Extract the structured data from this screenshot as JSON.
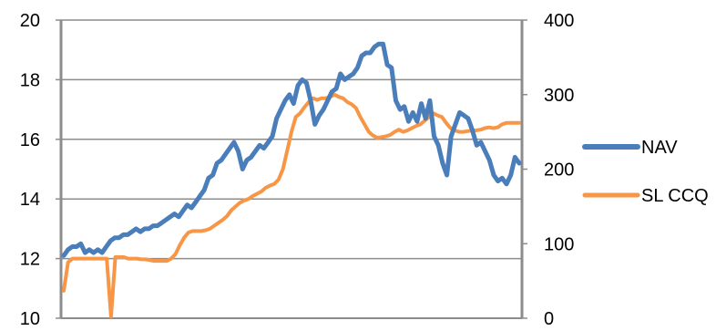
{
  "chart_data": {
    "type": "line",
    "y_left_range": [
      10,
      20
    ],
    "y_left_ticks": [
      "10",
      "12",
      "14",
      "16",
      "18",
      "20"
    ],
    "y_right_range": [
      0,
      400
    ],
    "y_right_ticks": [
      "0",
      "100",
      "200",
      "300",
      "400"
    ],
    "grid": true,
    "legend_position": "right",
    "series": [
      {
        "name": "NAV",
        "axis": "left",
        "color": "#4a7ebb",
        "values": [
          12.1,
          12.3,
          12.4,
          12.4,
          12.5,
          12.2,
          12.3,
          12.2,
          12.3,
          12.2,
          12.4,
          12.6,
          12.7,
          12.7,
          12.8,
          12.8,
          12.9,
          13.0,
          12.9,
          13.0,
          13.0,
          13.1,
          13.1,
          13.2,
          13.3,
          13.4,
          13.5,
          13.4,
          13.6,
          13.8,
          13.7,
          13.9,
          14.1,
          14.3,
          14.7,
          14.8,
          15.2,
          15.3,
          15.5,
          15.7,
          15.9,
          15.6,
          15.0,
          15.3,
          15.4,
          15.6,
          15.8,
          15.7,
          15.9,
          16.1,
          16.7,
          17.0,
          17.3,
          17.5,
          17.2,
          17.8,
          18.0,
          17.9,
          17.3,
          16.5,
          16.8,
          17.0,
          17.3,
          17.6,
          17.7,
          18.2,
          18.0,
          18.1,
          18.2,
          18.4,
          18.8,
          18.9,
          18.9,
          19.1,
          19.2,
          19.2,
          18.5,
          18.4,
          17.3,
          17.0,
          17.1,
          16.6,
          16.9,
          16.6,
          17.2,
          16.7,
          17.3,
          16.1,
          15.8,
          15.2,
          14.8,
          16.1,
          16.5,
          16.9,
          16.8,
          16.7,
          16.3,
          15.8,
          15.9,
          15.6,
          15.3,
          14.8,
          14.6,
          14.7,
          14.5,
          14.8,
          15.4,
          15.2
        ]
      },
      {
        "name": "SL CCQ",
        "axis": "right",
        "color": "#f79646",
        "values": [
          37,
          75,
          80,
          80,
          80,
          80,
          80,
          80,
          80,
          80,
          80,
          2,
          82,
          82,
          82,
          80,
          80,
          80,
          79,
          79,
          78,
          77,
          77,
          77,
          77,
          80,
          86,
          98,
          108,
          115,
          117,
          117,
          117,
          118,
          120,
          124,
          128,
          132,
          137,
          145,
          150,
          155,
          158,
          160,
          164,
          167,
          170,
          175,
          178,
          180,
          186,
          200,
          225,
          250,
          270,
          275,
          283,
          290,
          295,
          293,
          295,
          295,
          297,
          300,
          297,
          295,
          290,
          287,
          282,
          270,
          260,
          250,
          245,
          242,
          243,
          244,
          246,
          250,
          253,
          250,
          252,
          255,
          258,
          260,
          265,
          270,
          275,
          272,
          270,
          262,
          255,
          252,
          250,
          250,
          251,
          252,
          252,
          253,
          255,
          256,
          255,
          256,
          260,
          262,
          262,
          262,
          262
        ]
      }
    ]
  }
}
